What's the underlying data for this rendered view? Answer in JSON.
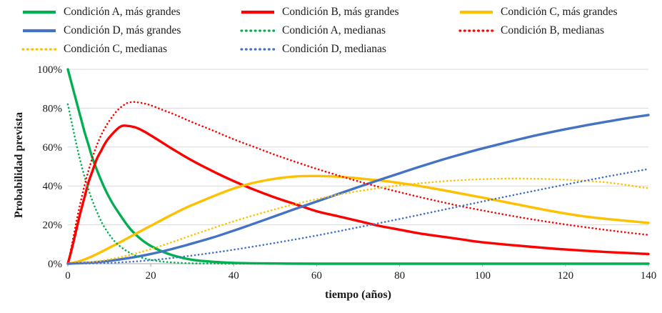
{
  "chart_data": {
    "type": "line",
    "title": "",
    "xlabel": "tiempo (años)",
    "ylabel": "Probabilidad prevista",
    "xlim": [
      0,
      140
    ],
    "ylim": [
      0,
      100
    ],
    "grid": "horizontal",
    "legend_position": "top",
    "x_ticks": [
      {
        "v": 0,
        "label": "0"
      },
      {
        "v": 20,
        "label": "20"
      },
      {
        "v": 40,
        "label": "40"
      },
      {
        "v": 60,
        "label": "60"
      },
      {
        "v": 80,
        "label": "80"
      },
      {
        "v": 100,
        "label": "100"
      },
      {
        "v": 120,
        "label": "120"
      },
      {
        "v": 140,
        "label": "140"
      }
    ],
    "y_ticks": [
      {
        "v": 0,
        "label": "0%"
      },
      {
        "v": 20,
        "label": "20%"
      },
      {
        "v": 40,
        "label": "40%"
      },
      {
        "v": 60,
        "label": "60%"
      },
      {
        "v": 80,
        "label": "80%"
      },
      {
        "v": 100,
        "label": "100%"
      }
    ],
    "colors": {
      "green": "#00B050",
      "red": "#FF0000",
      "yellow": "#FFC000",
      "blue": "#4472C4",
      "gridline": "#D9D9D9",
      "axis": "#A6A6A6"
    },
    "series": [
      {
        "name": "Condición A, más grandes",
        "color": "#00B050",
        "style": "solid",
        "points": [
          [
            0,
            100
          ],
          [
            1,
            92
          ],
          [
            2,
            84
          ],
          [
            3,
            76
          ],
          [
            4,
            68
          ],
          [
            5,
            61
          ],
          [
            6,
            54
          ],
          [
            8,
            43
          ],
          [
            10,
            34
          ],
          [
            12,
            27
          ],
          [
            15,
            18
          ],
          [
            18,
            12
          ],
          [
            21,
            8
          ],
          [
            25,
            4.5
          ],
          [
            30,
            2
          ],
          [
            35,
            1
          ],
          [
            40,
            0.4
          ],
          [
            50,
            0.1
          ],
          [
            60,
            0
          ],
          [
            80,
            0
          ],
          [
            100,
            0
          ],
          [
            120,
            0
          ],
          [
            140,
            0
          ]
        ]
      },
      {
        "name": "Condición B, más grandes",
        "color": "#FF0000",
        "style": "solid",
        "points": [
          [
            0,
            0
          ],
          [
            1,
            8
          ],
          [
            2,
            17
          ],
          [
            3,
            26
          ],
          [
            4,
            34
          ],
          [
            5,
            42
          ],
          [
            6,
            48
          ],
          [
            7,
            54
          ],
          [
            8,
            58
          ],
          [
            9,
            62
          ],
          [
            10,
            65
          ],
          [
            12,
            69.5
          ],
          [
            13,
            70.8
          ],
          [
            14,
            71
          ],
          [
            16,
            70.3
          ],
          [
            18,
            68.5
          ],
          [
            20,
            66
          ],
          [
            23,
            62
          ],
          [
            26,
            58
          ],
          [
            30,
            53
          ],
          [
            35,
            47.5
          ],
          [
            40,
            42.5
          ],
          [
            45,
            38
          ],
          [
            50,
            34
          ],
          [
            55,
            30.5
          ],
          [
            60,
            27
          ],
          [
            65,
            24.5
          ],
          [
            70,
            22
          ],
          [
            75,
            19.5
          ],
          [
            80,
            17.5
          ],
          [
            85,
            15.5
          ],
          [
            90,
            14
          ],
          [
            95,
            12.5
          ],
          [
            100,
            11
          ],
          [
            110,
            9
          ],
          [
            120,
            7.3
          ],
          [
            130,
            6
          ],
          [
            140,
            5
          ]
        ]
      },
      {
        "name": "Condición C, más grandes",
        "color": "#FFC000",
        "style": "solid",
        "points": [
          [
            0,
            0
          ],
          [
            2,
            0.8
          ],
          [
            5,
            3
          ],
          [
            8,
            6
          ],
          [
            10,
            8.2
          ],
          [
            13,
            11.5
          ],
          [
            16,
            15
          ],
          [
            20,
            19.5
          ],
          [
            24,
            24
          ],
          [
            28,
            28.3
          ],
          [
            32,
            32
          ],
          [
            36,
            35.5
          ],
          [
            40,
            38.7
          ],
          [
            44,
            41.2
          ],
          [
            48,
            43
          ],
          [
            52,
            44.3
          ],
          [
            56,
            45
          ],
          [
            60,
            45.1
          ],
          [
            64,
            44.9
          ],
          [
            68,
            44.3
          ],
          [
            72,
            43.5
          ],
          [
            76,
            42.6
          ],
          [
            80,
            41.5
          ],
          [
            85,
            39.9
          ],
          [
            90,
            38
          ],
          [
            95,
            36
          ],
          [
            100,
            34
          ],
          [
            105,
            31.9
          ],
          [
            110,
            29.8
          ],
          [
            115,
            27.7
          ],
          [
            120,
            25.8
          ],
          [
            125,
            24.2
          ],
          [
            130,
            23
          ],
          [
            135,
            22
          ],
          [
            140,
            21
          ]
        ]
      },
      {
        "name": "Condición D, más grandes",
        "color": "#4472C4",
        "style": "solid",
        "points": [
          [
            0,
            0
          ],
          [
            5,
            0.5
          ],
          [
            10,
            1.5
          ],
          [
            15,
            3
          ],
          [
            20,
            5
          ],
          [
            25,
            7.5
          ],
          [
            30,
            10.4
          ],
          [
            35,
            13.5
          ],
          [
            40,
            17
          ],
          [
            45,
            20.7
          ],
          [
            50,
            24.5
          ],
          [
            55,
            28.3
          ],
          [
            60,
            32
          ],
          [
            65,
            35.7
          ],
          [
            70,
            39.4
          ],
          [
            75,
            43
          ],
          [
            80,
            46.5
          ],
          [
            85,
            50
          ],
          [
            90,
            53.3
          ],
          [
            95,
            56.4
          ],
          [
            100,
            59.3
          ],
          [
            105,
            62
          ],
          [
            110,
            64.6
          ],
          [
            115,
            67
          ],
          [
            120,
            69.2
          ],
          [
            125,
            71.2
          ],
          [
            130,
            73.1
          ],
          [
            135,
            74.9
          ],
          [
            140,
            76.5
          ]
        ]
      },
      {
        "name": "Condición A, medianas",
        "color": "#00B050",
        "style": "dotted",
        "points": [
          [
            0,
            82
          ],
          [
            1,
            72
          ],
          [
            2,
            62
          ],
          [
            3,
            53
          ],
          [
            4,
            45
          ],
          [
            5,
            38
          ],
          [
            6,
            32
          ],
          [
            8,
            22
          ],
          [
            10,
            15
          ],
          [
            12,
            10
          ],
          [
            15,
            5.5
          ],
          [
            18,
            3
          ],
          [
            21,
            1.6
          ],
          [
            25,
            0.7
          ],
          [
            30,
            0.2
          ],
          [
            35,
            0.1
          ],
          [
            40,
            0
          ],
          [
            60,
            0
          ],
          [
            80,
            0
          ],
          [
            100,
            0
          ],
          [
            120,
            0
          ],
          [
            140,
            0
          ]
        ]
      },
      {
        "name": "Condición B, medianas",
        "color": "#FF0000",
        "style": "dotted",
        "points": [
          [
            0,
            0
          ],
          [
            1,
            10
          ],
          [
            2,
            21
          ],
          [
            3,
            31
          ],
          [
            4,
            40
          ],
          [
            5,
            48
          ],
          [
            6,
            55
          ],
          [
            7,
            61
          ],
          [
            8,
            66
          ],
          [
            9,
            70
          ],
          [
            10,
            73.5
          ],
          [
            12,
            79
          ],
          [
            14,
            82.3
          ],
          [
            15,
            83
          ],
          [
            16,
            83.2
          ],
          [
            18,
            82.6
          ],
          [
            20,
            81.5
          ],
          [
            23,
            79
          ],
          [
            26,
            76.5
          ],
          [
            30,
            72.8
          ],
          [
            35,
            68.5
          ],
          [
            40,
            64
          ],
          [
            45,
            60
          ],
          [
            50,
            56
          ],
          [
            55,
            52.3
          ],
          [
            60,
            48.8
          ],
          [
            65,
            45.5
          ],
          [
            70,
            42.4
          ],
          [
            75,
            39.5
          ],
          [
            80,
            36.8
          ],
          [
            85,
            34.2
          ],
          [
            90,
            31.8
          ],
          [
            95,
            29.5
          ],
          [
            100,
            27.4
          ],
          [
            105,
            25.4
          ],
          [
            110,
            23.5
          ],
          [
            115,
            21.8
          ],
          [
            120,
            20.2
          ],
          [
            125,
            18.7
          ],
          [
            130,
            17.3
          ],
          [
            135,
            16
          ],
          [
            140,
            14.8
          ]
        ]
      },
      {
        "name": "Condición C, medianas",
        "color": "#FFC000",
        "style": "dotted",
        "points": [
          [
            0,
            0
          ],
          [
            5,
            0.7
          ],
          [
            10,
            2.2
          ],
          [
            15,
            4.5
          ],
          [
            20,
            7.5
          ],
          [
            25,
            11
          ],
          [
            30,
            14.7
          ],
          [
            35,
            18.3
          ],
          [
            40,
            21.8
          ],
          [
            45,
            25
          ],
          [
            50,
            28
          ],
          [
            55,
            30.8
          ],
          [
            60,
            33.2
          ],
          [
            65,
            35.4
          ],
          [
            70,
            37.3
          ],
          [
            75,
            38.9
          ],
          [
            80,
            40.3
          ],
          [
            85,
            41.4
          ],
          [
            90,
            42.3
          ],
          [
            95,
            43
          ],
          [
            100,
            43.5
          ],
          [
            105,
            43.8
          ],
          [
            110,
            43.8
          ],
          [
            115,
            43.6
          ],
          [
            120,
            43.2
          ],
          [
            125,
            42.6
          ],
          [
            130,
            41.8
          ],
          [
            135,
            40.4
          ],
          [
            140,
            38.8
          ]
        ]
      },
      {
        "name": "Condición D, medianas",
        "color": "#4472C4",
        "style": "dotted",
        "points": [
          [
            0,
            0
          ],
          [
            10,
            0.4
          ],
          [
            20,
            1.8
          ],
          [
            30,
            4.2
          ],
          [
            40,
            7.2
          ],
          [
            50,
            10.7
          ],
          [
            60,
            14.5
          ],
          [
            70,
            18.7
          ],
          [
            80,
            23
          ],
          [
            90,
            27.5
          ],
          [
            100,
            32
          ],
          [
            110,
            36.4
          ],
          [
            120,
            40.7
          ],
          [
            130,
            44.8
          ],
          [
            140,
            48.7
          ]
        ]
      }
    ]
  }
}
